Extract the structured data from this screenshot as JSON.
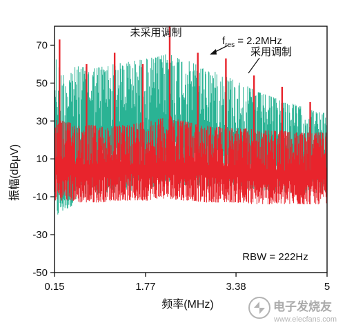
{
  "chart_data": {
    "type": "line",
    "title": "",
    "xlabel": "频率(MHz)",
    "ylabel": "振幅(dBμV)",
    "xlim": [
      0.15,
      5
    ],
    "ylim": [
      -50,
      80
    ],
    "x_ticks": [
      0.15,
      1.77,
      3.38,
      5
    ],
    "x_tick_labels": [
      "0.15",
      "1.77",
      "3.38",
      "5"
    ],
    "y_ticks": [
      -50,
      -30,
      -10,
      10,
      30,
      50,
      70
    ],
    "y_tick_labels": [
      "-50",
      "-30",
      "-10",
      "10",
      "30",
      "50",
      "70"
    ],
    "grid": false,
    "series": [
      {
        "name": "采用调制",
        "color": "#2ab394",
        "envelope": {
          "x": [
            0.15,
            0.3,
            0.45,
            0.6,
            0.8,
            1.0,
            1.2,
            1.4,
            1.6,
            1.8,
            2.0,
            2.2,
            2.4,
            2.6,
            2.8,
            3.0,
            3.2,
            3.4,
            3.6,
            3.8,
            4.0,
            4.2,
            4.4,
            4.6,
            4.8,
            5.0
          ],
          "upper": [
            66,
            55,
            58,
            59,
            58,
            59,
            60,
            61,
            62,
            63,
            64,
            66,
            63,
            61,
            58,
            56,
            54,
            51,
            48,
            45,
            43,
            41,
            39,
            37,
            35,
            34
          ],
          "lower": [
            -22,
            -18,
            -15,
            -12,
            -10,
            -8,
            -8,
            -6,
            -8,
            -6,
            -4,
            -2,
            -4,
            -4,
            -5,
            -5,
            -5,
            -6,
            -6,
            -7,
            -7,
            -8,
            -8,
            -8,
            -8,
            -8
          ]
        }
      },
      {
        "name": "未采用调制",
        "color": "#e8242c",
        "envelope": {
          "x": [
            0.15,
            0.3,
            0.45,
            0.6,
            0.8,
            1.0,
            1.2,
            1.4,
            1.6,
            1.8,
            2.0,
            2.2,
            2.4,
            2.6,
            2.8,
            3.0,
            3.2,
            3.4,
            3.6,
            3.8,
            4.0,
            4.2,
            4.4,
            4.6,
            4.8,
            5.0
          ],
          "upper": [
            32,
            30,
            29,
            28,
            28,
            27,
            27,
            28,
            29,
            30,
            31,
            33,
            31,
            29,
            28,
            27,
            27,
            26,
            26,
            25,
            25,
            25,
            24,
            24,
            24,
            24
          ],
          "lower": [
            -12,
            -12,
            -12,
            -13,
            -13,
            -13,
            -12,
            -12,
            -12,
            -12,
            -11,
            -11,
            -12,
            -12,
            -13,
            -13,
            -13,
            -13,
            -14,
            -14,
            -14,
            -14,
            -14,
            -14,
            -14,
            -14
          ]
        },
        "peaks": {
          "x": [
            0.24,
            0.72,
            1.22,
            1.72,
            2.2,
            2.7,
            3.2,
            3.7,
            4.2,
            4.7
          ],
          "y": [
            73,
            60,
            66,
            60,
            81,
            66,
            63,
            54,
            48,
            40
          ]
        }
      }
    ],
    "annotations": [
      {
        "text": "未采用调制",
        "x": 2.2,
        "y": 81,
        "arrow": false
      },
      {
        "text": "f",
        "sub": "res",
        "suffix": " = 2.2MHz",
        "x": 2.3,
        "y": 70,
        "arrow": true
      },
      {
        "text": "采用调制",
        "x": 3.3,
        "y": 66,
        "arrow": false
      },
      {
        "text": "RBW = 222Hz",
        "x": 4.0,
        "y": -37,
        "arrow": false
      }
    ]
  },
  "logo": {
    "text": "电子发烧友",
    "url_text": "www.elecfans.com"
  }
}
